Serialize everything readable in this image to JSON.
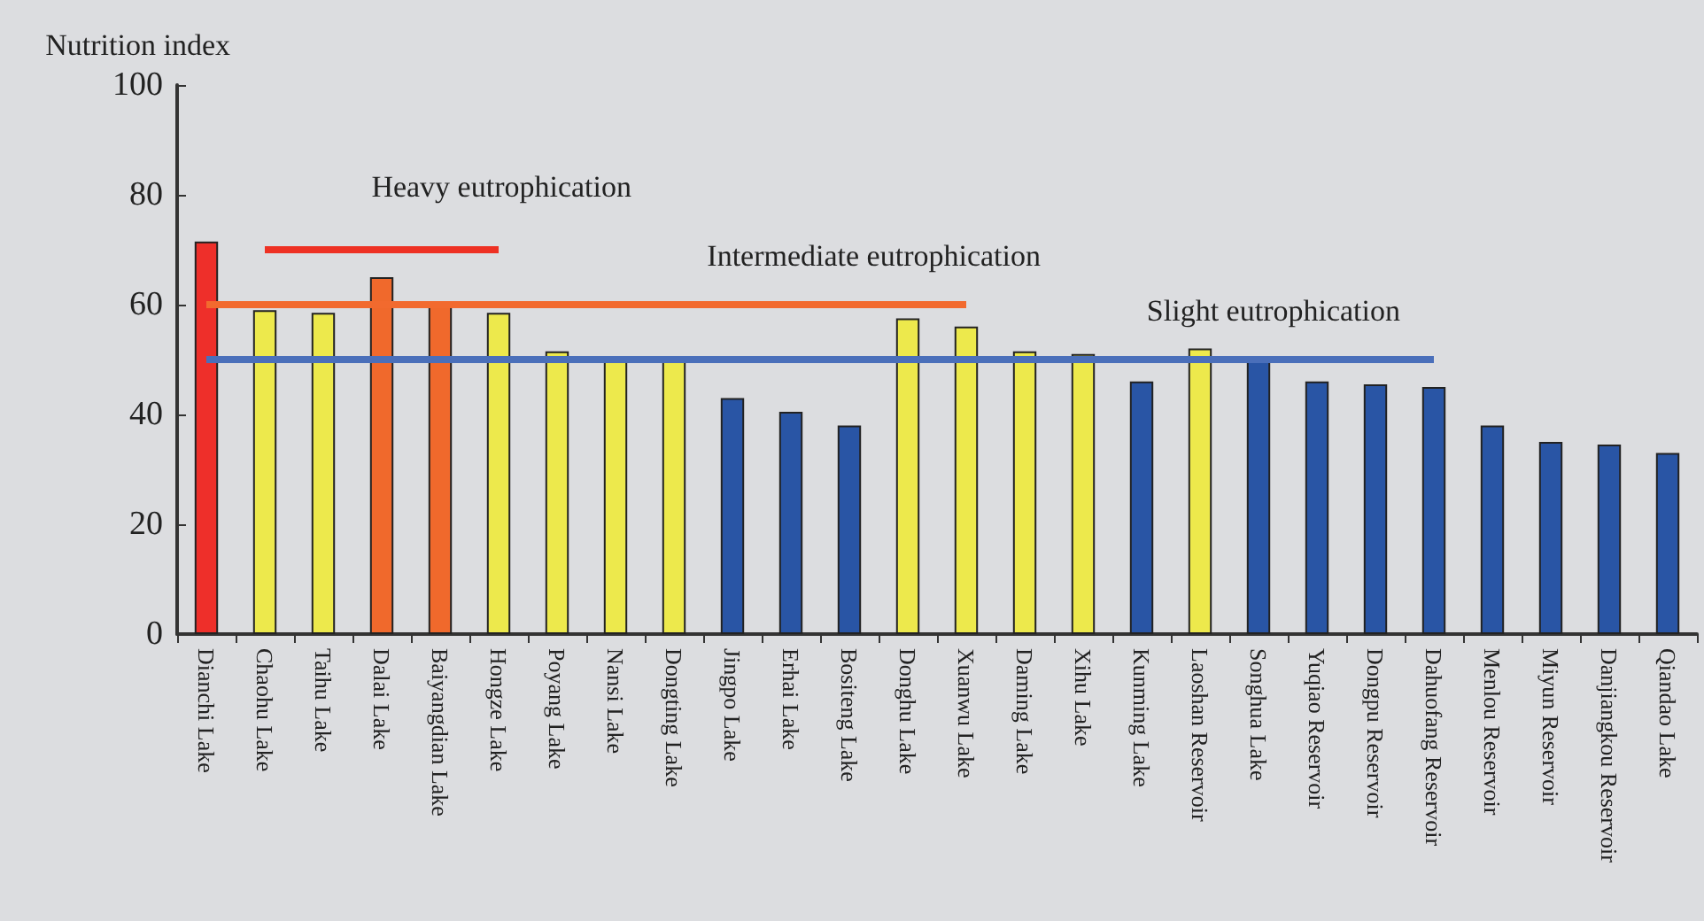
{
  "chart_data": {
    "type": "bar",
    "ylabel": "Nutrition index",
    "categories": [
      "Dianchi Lake",
      "Chaohu Lake",
      "Taihu Lake",
      "Dalai Lake",
      "Baiyangdian Lake",
      "Hongze Lake",
      "Poyang Lake",
      "Nansi Lake",
      "Dongting Lake",
      "Jingpo Lake",
      "Erhai Lake",
      "Bositeng Lake",
      "Donghu Lake",
      "Xuanwu Lake",
      "Daming Lake",
      "Xihu Lake",
      "Kunming Lake",
      "Laoshan Reservoir",
      "Songhua Lake",
      "Yuqiao Reservoir",
      "Dongpu Reservoir",
      "Dahuofang Reservoir",
      "Menlou Reservoir",
      "Miyun Reservoir",
      "Danjiangkou Reservoir",
      "Qiandao Lake"
    ],
    "series": [
      {
        "values": [
          71.5,
          59,
          58.5,
          65,
          60.5,
          58.5,
          51.5,
          50.5,
          50.5,
          43,
          40.5,
          38,
          57.5,
          56,
          51.5,
          51,
          46,
          52,
          50,
          46,
          45.5,
          45,
          38,
          35,
          34.5,
          33
        ],
        "colors": [
          "#ee2f2a",
          "#ede94c",
          "#ede94c",
          "#f0692c",
          "#f0692c",
          "#ede94c",
          "#ede94c",
          "#ede94c",
          "#ede94c",
          "#2955a5",
          "#2955a5",
          "#2955a5",
          "#ede94c",
          "#ede94c",
          "#ede94c",
          "#ede94c",
          "#2955a5",
          "#ede94c",
          "#2955a5",
          "#2955a5",
          "#2955a5",
          "#2955a5",
          "#2955a5",
          "#2955a5",
          "#2955a5",
          "#2955a5"
        ]
      },
      {
        "type": "line",
        "name": "Heavy eutrophication",
        "color": "#ee3124",
        "x": [
          "Chaohu Lake",
          "Hongze Lake"
        ],
        "values": [
          70,
          70
        ]
      },
      {
        "type": "line",
        "name": "Intermediate eutrophication",
        "color": "#f26a2e",
        "x": [
          "Dianchi Lake",
          "Xuanwu Lake"
        ],
        "values": [
          60,
          60
        ]
      },
      {
        "type": "line",
        "name": "Slight eutrophication",
        "color": "#4a6fba",
        "x": [
          "Dianchi Lake",
          "Dahuofang Reservoir"
        ],
        "values": [
          50,
          50
        ]
      }
    ],
    "ylim": [
      0,
      100
    ],
    "yticks": [
      0,
      20,
      40,
      60,
      80,
      100
    ],
    "grid": false,
    "legend": false
  }
}
